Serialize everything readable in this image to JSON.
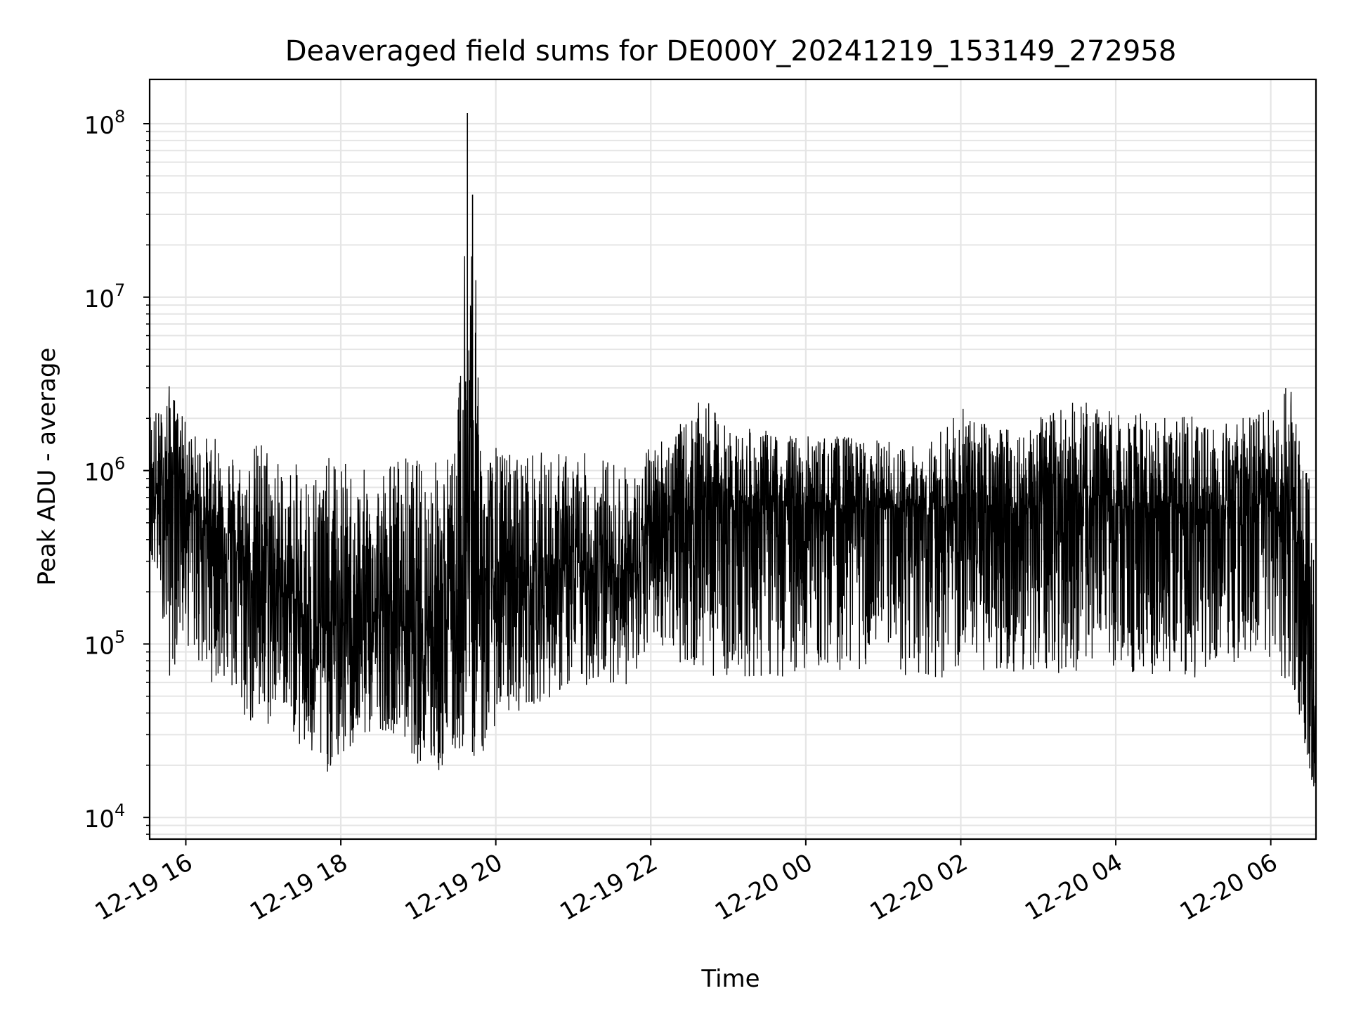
{
  "chart_data": {
    "type": "line",
    "title": "Deaveraged field sums for DE000Y_20241219_153149_272958",
    "xlabel": "Time",
    "ylabel": "Peak ADU - average",
    "yscale": "log",
    "ylim": [
      7500,
      180000000
    ],
    "xlim": [
      "2024-12-19 15:32",
      "2024-12-20 06:35"
    ],
    "x_ticks": [
      {
        "at": "2024-12-19 16:00",
        "label": "12-19 16"
      },
      {
        "at": "2024-12-19 18:00",
        "label": "12-19 18"
      },
      {
        "at": "2024-12-19 20:00",
        "label": "12-19 20"
      },
      {
        "at": "2024-12-19 22:00",
        "label": "12-19 22"
      },
      {
        "at": "2024-12-20 00:00",
        "label": "12-20 00"
      },
      {
        "at": "2024-12-20 02:00",
        "label": "12-20 02"
      },
      {
        "at": "2024-12-20 04:00",
        "label": "12-20 04"
      },
      {
        "at": "2024-12-20 06:00",
        "label": "12-20 06"
      }
    ],
    "y_ticks": [
      {
        "value": 10000,
        "base": "10",
        "exp": "4"
      },
      {
        "value": 100000,
        "base": "10",
        "exp": "5"
      },
      {
        "value": 1000000,
        "base": "10",
        "exp": "6"
      },
      {
        "value": 10000000,
        "base": "10",
        "exp": "7"
      },
      {
        "value": 100000000,
        "base": "10",
        "exp": "8"
      }
    ],
    "grid": true,
    "minor_grid": true,
    "line_color": "#000000",
    "grid_color": "#e5e5e5",
    "series": [
      {
        "x": [
          "2024-12-19 15:32",
          "2024-12-19 15:40",
          "2024-12-19 15:48",
          "2024-12-19 15:55",
          "2024-12-19 16:05",
          "2024-12-19 16:15",
          "2024-12-19 16:30",
          "2024-12-19 16:45",
          "2024-12-19 17:00",
          "2024-12-19 17:15",
          "2024-12-19 17:30",
          "2024-12-19 17:45",
          "2024-12-19 18:00",
          "2024-12-19 18:15",
          "2024-12-19 18:30",
          "2024-12-19 18:45",
          "2024-12-19 19:00",
          "2024-12-19 19:15",
          "2024-12-19 19:30",
          "2024-12-19 19:38",
          "2024-12-19 19:42",
          "2024-12-19 19:50",
          "2024-12-19 20:00",
          "2024-12-19 20:30",
          "2024-12-19 21:00",
          "2024-12-19 21:30",
          "2024-12-19 21:50",
          "2024-12-19 22:00",
          "2024-12-19 22:30",
          "2024-12-19 22:40",
          "2024-12-19 23:00",
          "2024-12-19 23:30",
          "2024-12-20 00:00",
          "2024-12-20 00:30",
          "2024-12-20 01:00",
          "2024-12-20 01:30",
          "2024-12-20 02:00",
          "2024-12-20 02:30",
          "2024-12-20 03:00",
          "2024-12-20 03:30",
          "2024-12-20 04:00",
          "2024-12-20 04:30",
          "2024-12-20 05:00",
          "2024-12-20 05:30",
          "2024-12-20 06:00",
          "2024-12-20 06:15",
          "2024-12-20 06:30",
          "2024-12-20 06:35"
        ],
        "high": [
          2500000,
          2300000,
          3300000,
          2200000,
          1700000,
          1600000,
          1500000,
          1200000,
          1700000,
          1100000,
          1100000,
          1200000,
          1200000,
          1000000,
          1100000,
          1300000,
          1200000,
          1200000,
          1500000,
          115000000,
          39000000,
          1200000,
          1400000,
          1300000,
          1300000,
          1200000,
          1000000,
          1500000,
          2000000,
          2700000,
          1800000,
          1700000,
          1600000,
          1600000,
          1500000,
          1400000,
          2300000,
          1800000,
          2000000,
          2600000,
          2200000,
          2100000,
          2100000,
          2000000,
          2300000,
          3300000,
          1000000,
          200000
        ],
        "low": [
          280000,
          200000,
          55000,
          100000,
          90000,
          60000,
          60000,
          35000,
          28000,
          45000,
          22000,
          17000,
          20000,
          26000,
          32000,
          30000,
          20000,
          17000,
          22000,
          25000,
          22000,
          22000,
          35000,
          45000,
          55000,
          60000,
          55000,
          110000,
          70000,
          65000,
          65000,
          60000,
          70000,
          70000,
          70000,
          60000,
          65000,
          70000,
          65000,
          70000,
          70000,
          65000,
          60000,
          65000,
          60000,
          55000,
          17000,
          14000
        ],
        "typical": [
          800000,
          700000,
          900000,
          1100000,
          600000,
          500000,
          450000,
          300000,
          250000,
          200000,
          150000,
          120000,
          130000,
          140000,
          150000,
          140000,
          130000,
          140000,
          160000,
          500000,
          300000,
          200000,
          220000,
          250000,
          260000,
          280000,
          250000,
          500000,
          600000,
          700000,
          650000,
          620000,
          600000,
          610000,
          600000,
          580000,
          620000,
          600000,
          610000,
          620000,
          600000,
          610000,
          590000,
          600000,
          580000,
          700000,
          120000,
          20000
        ]
      }
    ]
  }
}
